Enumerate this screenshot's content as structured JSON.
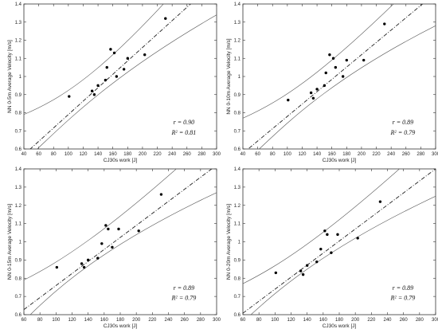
{
  "chart_data": [
    {
      "type": "scatter",
      "xlabel": "CJ30s work [J]",
      "ylabel": "NN 0-5m Average Velocity [m/s]",
      "xlim": [
        40,
        300
      ],
      "ylim": [
        0.6,
        1.4
      ],
      "xticks": [
        40,
        60,
        80,
        100,
        120,
        140,
        160,
        180,
        200,
        220,
        240,
        260,
        280,
        300
      ],
      "yticks": [
        0.6,
        0.7,
        0.8,
        0.9,
        1.0,
        1.1,
        1.2,
        1.3,
        1.4
      ],
      "x": [
        101,
        132,
        135,
        140,
        150,
        152,
        157,
        162,
        165,
        175,
        180,
        203,
        231
      ],
      "y": [
        0.89,
        0.92,
        0.9,
        0.95,
        0.98,
        1.05,
        1.15,
        1.13,
        1.0,
        1.04,
        1.1,
        1.12,
        1.32
      ],
      "fit": {
        "intercept": 0.42,
        "slope": 0.0037
      },
      "ci_upper": [
        [
          40,
          0.79
        ],
        [
          100,
          0.895
        ],
        [
          160,
          1.06
        ],
        [
          300,
          1.73
        ]
      ],
      "ci_lower": [
        [
          58,
          0.6
        ],
        [
          100,
          0.76
        ],
        [
          160,
          1.01
        ],
        [
          300,
          1.34
        ]
      ],
      "r_text": "r = 0.90",
      "r2_text": "R",
      "r2_sup": "2",
      "r2_value": " = 0.81"
    },
    {
      "type": "scatter",
      "xlabel": "CJ30s work [J]",
      "ylabel": "NN 0-10m Average Velocity [m/s]",
      "xlim": [
        40,
        300
      ],
      "ylim": [
        0.6,
        1.4
      ],
      "xticks": [
        40,
        60,
        80,
        100,
        120,
        140,
        160,
        180,
        200,
        220,
        240,
        260,
        280,
        300
      ],
      "yticks": [
        0.6,
        0.7,
        0.8,
        0.9,
        1.0,
        1.1,
        1.2,
        1.3,
        1.4
      ],
      "x": [
        101,
        132,
        135,
        140,
        150,
        152,
        157,
        162,
        165,
        175,
        180,
        203,
        231
      ],
      "y": [
        0.87,
        0.91,
        0.88,
        0.93,
        0.95,
        1.02,
        1.12,
        1.1,
        1.05,
        1.0,
        1.09,
        1.09,
        1.29
      ],
      "fit": {
        "intercept": 0.44,
        "slope": 0.0034
      },
      "ci_upper": [
        [
          40,
          0.77
        ],
        [
          100,
          0.88
        ],
        [
          160,
          1.05
        ],
        [
          300,
          1.63
        ]
      ],
      "ci_lower": [
        [
          62,
          0.6
        ],
        [
          100,
          0.745
        ],
        [
          160,
          0.99
        ],
        [
          300,
          1.28
        ]
      ],
      "r_text": "r = 0.89",
      "r2_text": "R",
      "r2_sup": "2",
      "r2_value": " = 0.79"
    },
    {
      "type": "scatter",
      "xlabel": "CJ30s work [J]",
      "ylabel": "NN 0-15m Average Velocity [m/s]",
      "xlim": [
        60,
        300
      ],
      "ylim": [
        0.6,
        1.4
      ],
      "xticks": [
        60,
        80,
        100,
        120,
        140,
        160,
        180,
        200,
        220,
        240,
        260,
        280,
        300
      ],
      "yticks": [
        0.6,
        0.7,
        0.8,
        0.9,
        1.0,
        1.1,
        1.2,
        1.3,
        1.4
      ],
      "x": [
        101,
        132,
        135,
        140,
        152,
        157,
        162,
        165,
        170,
        178,
        203,
        231
      ],
      "y": [
        0.86,
        0.88,
        0.86,
        0.9,
        0.91,
        0.99,
        1.09,
        1.07,
        0.97,
        1.07,
        1.06,
        1.26
      ],
      "fit": {
        "intercept": 0.43,
        "slope": 0.0033
      },
      "ci_upper": [
        [
          60,
          0.79
        ],
        [
          100,
          0.88
        ],
        [
          160,
          1.03
        ],
        [
          300,
          1.6
        ]
      ],
      "ci_lower": [
        [
          68,
          0.6
        ],
        [
          100,
          0.74
        ],
        [
          160,
          0.98
        ],
        [
          300,
          1.27
        ]
      ],
      "r_text": "r = 0.89",
      "r2_text": "R",
      "r2_sup": "2",
      "r2_value": " = 0.79"
    },
    {
      "type": "scatter",
      "xlabel": "CJ30s work [J]",
      "ylabel": "NN 0-20m Average Velocity [m/s]",
      "xlim": [
        60,
        300
      ],
      "ylim": [
        0.6,
        1.4
      ],
      "xticks": [
        60,
        80,
        100,
        120,
        140,
        160,
        180,
        200,
        220,
        240,
        260,
        280,
        300
      ],
      "yticks": [
        0.6,
        0.7,
        0.8,
        0.9,
        1.0,
        1.1,
        1.2,
        1.3,
        1.4
      ],
      "x": [
        101,
        132,
        135,
        140,
        152,
        157,
        162,
        165,
        170,
        178,
        203,
        231
      ],
      "y": [
        0.83,
        0.84,
        0.82,
        0.87,
        0.89,
        0.96,
        1.06,
        1.04,
        0.94,
        1.04,
        1.02,
        1.22
      ],
      "fit": {
        "intercept": 0.41,
        "slope": 0.0033
      },
      "ci_upper": [
        [
          60,
          0.77
        ],
        [
          100,
          0.86
        ],
        [
          160,
          1.01
        ],
        [
          300,
          1.58
        ]
      ],
      "ci_lower": [
        [
          70,
          0.6
        ],
        [
          100,
          0.72
        ],
        [
          160,
          0.96
        ],
        [
          300,
          1.25
        ]
      ],
      "r_text": "r = 0.89",
      "r2_text": "R",
      "r2_sup": "2",
      "r2_value": " = 0.79"
    }
  ]
}
